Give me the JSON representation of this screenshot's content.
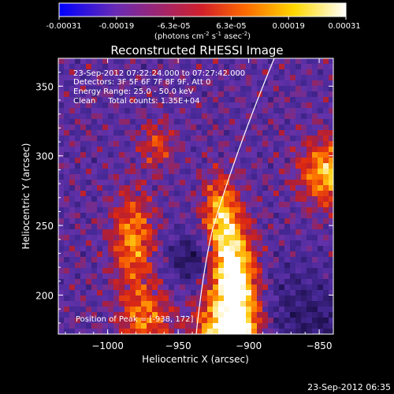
{
  "chart_data": {
    "type": "heatmap",
    "title": "Reconstructed RHESSI Image",
    "colorbar": {
      "ticks": [
        "-0.00031",
        "-0.00019",
        "-6.3e-05",
        "6.3e-05",
        "0.00019",
        "0.00031"
      ],
      "range": [
        -0.00031,
        0.00031
      ],
      "colormap": "blue-purple-red-yellow-white",
      "colors": [
        "#0000ff",
        "#6a2bb3",
        "#d2202a",
        "#ff6a00",
        "#ffd800",
        "#ffffff"
      ],
      "unit_prefix": "(photons cm",
      "unit_sup1": "-2",
      "unit_mid": " s",
      "unit_sup2": "-1",
      "unit_mid2": " asec",
      "unit_sup3": "-2",
      "unit_suffix": ")"
    },
    "xlabel": "Heliocentric X (arcsec)",
    "ylabel": "Heliocentric Y (arcsec)",
    "xlim": [
      -1035,
      -840
    ],
    "ylim": [
      172,
      370
    ],
    "x_ticks": [
      "−1000",
      "−950",
      "−900",
      "−850"
    ],
    "x_tick_values": [
      -1000,
      -950,
      -900,
      -850
    ],
    "y_ticks": [
      "200",
      "250",
      "300",
      "350"
    ],
    "y_tick_values": [
      200,
      250,
      300,
      350
    ],
    "annotations": {
      "line1": "23-Sep-2012 07:22:24.000 to 07:27:42.000",
      "line2": "Detectors: 3F 5F 6F 7F 8F 9F, Att 0",
      "line3": "Energy Range: 25.0 - 50.0 keV",
      "line4": "Clean     Total counts: 1.35E+04",
      "peak": "Position of Peak = [-938, 172]"
    },
    "footer_timestamp": "23-Sep-2012 06:35"
  }
}
